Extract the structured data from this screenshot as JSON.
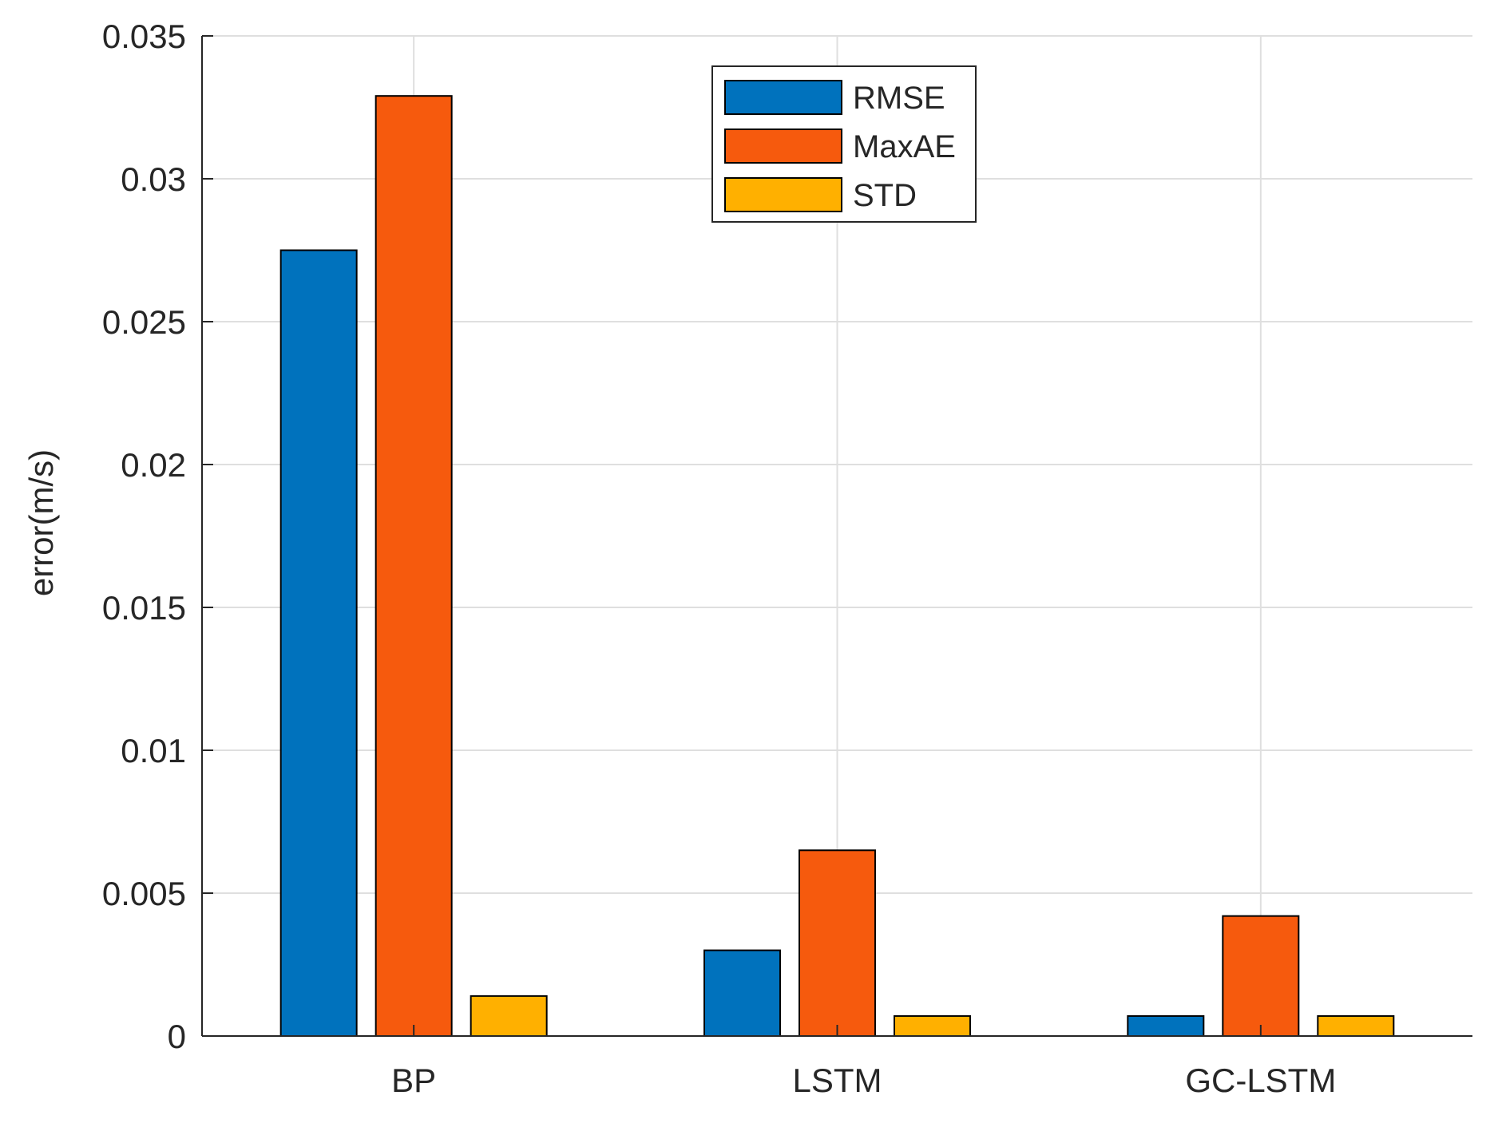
{
  "chart_data": {
    "type": "bar",
    "categories": [
      "BP",
      "LSTM",
      "GC-LSTM"
    ],
    "series": [
      {
        "name": "RMSE",
        "color": "#0072BD",
        "values": [
          0.0275,
          0.003,
          0.0007
        ]
      },
      {
        "name": "MaxAE",
        "color": "#F65A0D",
        "values": [
          0.0329,
          0.0065,
          0.0042
        ]
      },
      {
        "name": "STD",
        "color": "#FFB000",
        "values": [
          0.0014,
          0.0007,
          0.0007
        ]
      }
    ],
    "title": "",
    "xlabel": "",
    "ylabel": "error(m/s)",
    "ylim": [
      0,
      0.035
    ],
    "yticks": [
      0,
      0.005,
      0.01,
      0.015,
      0.02,
      0.025,
      0.03,
      0.035
    ],
    "ytick_labels": [
      "0",
      "0.005",
      "0.01",
      "0.015",
      "0.02",
      "0.025",
      "0.03",
      "0.035"
    ],
    "grid": true,
    "legend_position": "top-center"
  }
}
